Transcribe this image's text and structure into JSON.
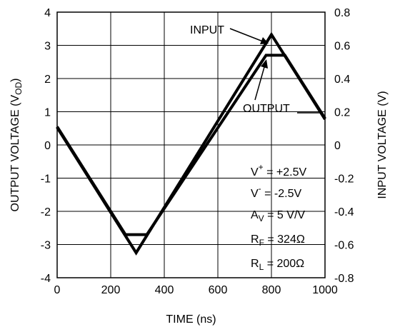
{
  "chart_data": {
    "type": "line",
    "xlabel": "TIME (ns)",
    "ylabel_left": "OUTPUT VOLTAGE (V",
    "ylabel_left_sub": "OD",
    "ylabel_left_close": ")",
    "ylabel_right": "INPUT VOLTAGE (V)",
    "xlim": [
      0,
      1000
    ],
    "ylim_left": [
      -4,
      4
    ],
    "ylim_right": [
      -0.8,
      0.8
    ],
    "grid": true,
    "x_ticks": [
      "0",
      "200",
      "400",
      "600",
      "800",
      "1000"
    ],
    "y_left_ticks": [
      "4",
      "3",
      "2",
      "1",
      "0",
      "-1",
      "-2",
      "-3",
      "-4"
    ],
    "y_right_ticks": [
      "0.8",
      "0.6",
      "0.4",
      "0.2",
      "0",
      "-0.2",
      "-0.4",
      "-0.6",
      "-0.8"
    ],
    "series": [
      {
        "name": "INPUT",
        "axis": "right",
        "x": [
          0,
          295,
          800,
          1000
        ],
        "y": [
          0.105,
          -0.65,
          0.665,
          0.155
        ]
      },
      {
        "name": "OUTPUT",
        "axis": "left",
        "x": [
          0,
          255,
          335,
          780,
          850,
          1000
        ],
        "y": [
          0.55,
          -2.7,
          -2.7,
          2.7,
          2.7,
          0.8
        ]
      }
    ],
    "annotations": {
      "input_label": "INPUT",
      "output_label": "OUTPUT",
      "conditions": [
        {
          "main": "V",
          "sup": "+",
          "sub": "",
          "rest": " = +2.5V"
        },
        {
          "main": "V",
          "sup": "-",
          "sub": "",
          "rest": " = -2.5V"
        },
        {
          "main": "A",
          "sup": "",
          "sub": "V",
          "rest": " = 5 V/V"
        },
        {
          "main": "R",
          "sup": "",
          "sub": "F",
          "rest": " = 324Ω"
        },
        {
          "main": "R",
          "sup": "",
          "sub": "L",
          "rest": " = 200Ω"
        }
      ]
    },
    "colors": {
      "line": "#000000",
      "grid": "#000000",
      "background": "#ffffff"
    }
  }
}
